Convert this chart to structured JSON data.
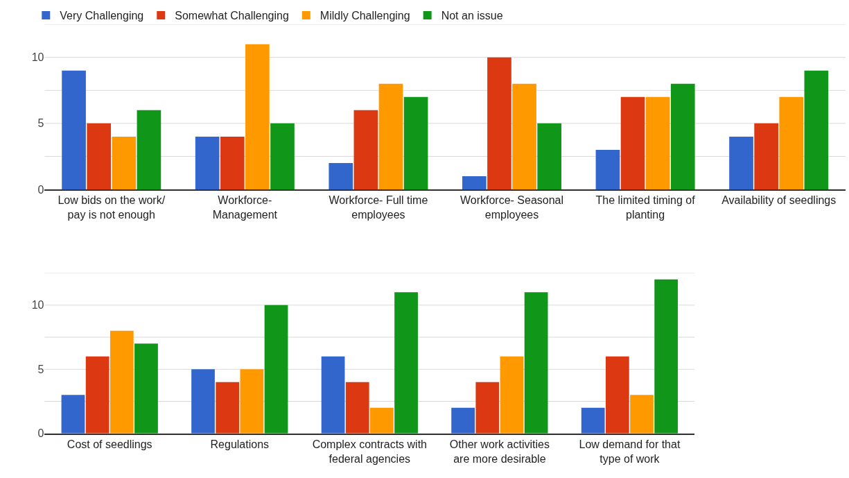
{
  "chart_data": [
    {
      "type": "bar",
      "categories": [
        "Low bids on the work/\npay is not enough",
        "Workforce-\nManagement",
        "Workforce- Full time\nemployees",
        "Workforce- Seasonal\nemployees",
        "The limited timing of\nplanting",
        "Availability of seedlings"
      ],
      "series": [
        {
          "name": "Very Challenging",
          "color": "#3366cc",
          "values": [
            9,
            4,
            2,
            1,
            3,
            4
          ]
        },
        {
          "name": "Somewhat Challenging",
          "color": "#dc3912",
          "values": [
            5,
            4,
            6,
            10,
            7,
            5
          ]
        },
        {
          "name": "Mildly Challenging",
          "color": "#ff9900",
          "values": [
            4,
            11,
            8,
            8,
            7,
            7
          ]
        },
        {
          "name": "Not an issue",
          "color": "#109618",
          "values": [
            6,
            5,
            7,
            5,
            8,
            9
          ]
        }
      ],
      "ylim": [
        0,
        12.5
      ],
      "yticks": [
        0,
        {
          "value": 2.5,
          "label": null
        },
        5,
        {
          "value": 7.5,
          "label": null
        },
        10,
        {
          "value": 12.5,
          "label": null
        }
      ],
      "grid": "y",
      "legend": "top left"
    },
    {
      "type": "bar",
      "categories": [
        "Cost of seedlings",
        "Regulations",
        "Complex contracts with\nfederal agencies",
        "Other work activities\nare more desirable",
        "Low demand for that\ntype of work"
      ],
      "series": [
        {
          "color": "#3366cc",
          "values": [
            3,
            5,
            6,
            2,
            2
          ]
        },
        {
          "color": "#dc3912",
          "values": [
            6,
            4,
            4,
            4,
            6
          ]
        },
        {
          "color": "#ff9900",
          "values": [
            8,
            5,
            2,
            6,
            3
          ]
        },
        {
          "color": "#109618",
          "values": [
            7,
            10,
            11,
            11,
            12
          ]
        }
      ],
      "ylim": [
        0,
        12.5
      ],
      "yticks": [
        0,
        {
          "value": 2.5,
          "label": null
        },
        5,
        {
          "value": 7.5,
          "label": null
        },
        10,
        {
          "value": 12.5,
          "label": null
        }
      ],
      "grid": "y"
    }
  ]
}
